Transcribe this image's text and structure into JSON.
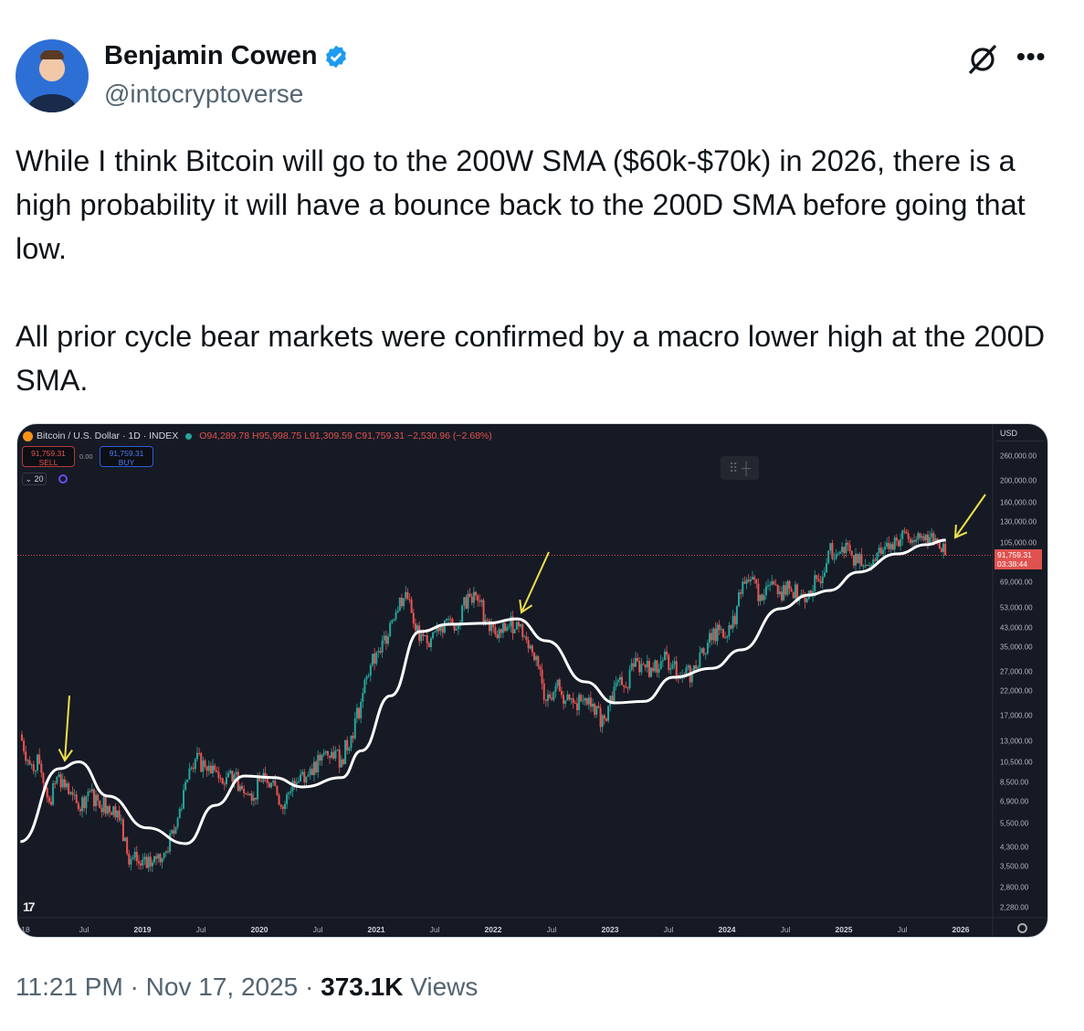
{
  "author": {
    "name": "Benjamin Cowen",
    "handle": "@intocryptoverse",
    "verified": true,
    "badge_color": "#1d9bf0"
  },
  "icons": {
    "grok": "grok-icon",
    "more": "more-options-icon",
    "verified": "verified-badge-icon"
  },
  "more_label": "•••",
  "tweet_text": "While I think Bitcoin will go to the 200W SMA ($60k-$70k) in 2026, there is a high probability it will have a bounce back to the 200D SMA before going that low.\n\nAll prior cycle bear markets were confirmed by a macro lower high at the 200D SMA.",
  "chart": {
    "symbol": "Bitcoin / U.S. Dollar · 1D · INDEX",
    "open": "O94,289.78",
    "high": "H95,998.75",
    "low": "L91,309.59",
    "close": "C91,759.31",
    "change": "−2,530.96 (−2.68%)",
    "sell_price": "91,759.31",
    "sell_label": "SELL",
    "spread": "0.00",
    "buy_price": "91,759.31",
    "buy_label": "BUY",
    "volume_toggle": "20",
    "currency": "USD",
    "last_price": "91,759.31",
    "countdown": "03:38:44",
    "logo": "TV",
    "colors": {
      "background": "#161a25",
      "up": "#26a69a",
      "down": "#ef5350",
      "sma": "#ffffff",
      "arrows": "#f0e04a",
      "last_price": "#e0524f"
    }
  },
  "chart_data": {
    "type": "line",
    "scale": "log",
    "ylabel": "USD",
    "y_ticks": [
      "260,000.00",
      "200,000.00",
      "160,000.00",
      "130,000.00",
      "105,000.00",
      "69,000.00",
      "53,000.00",
      "43,000.00",
      "35,000.00",
      "27,000.00",
      "22,000.00",
      "17,000.00",
      "13,000.00",
      "10,500.00",
      "8,500.00",
      "6,900.00",
      "5,500.00",
      "4,300.00",
      "3,500.00",
      "2,800.00",
      "2,280.00"
    ],
    "x_ticks": [
      "18",
      "Jul",
      "2019",
      "Jul",
      "2020",
      "Jul",
      "2021",
      "Jul",
      "2022",
      "Jul",
      "2023",
      "Jul",
      "2024",
      "Jul",
      "2025",
      "Jul",
      "2026"
    ],
    "series": [
      {
        "kind": "candles",
        "values": [
          [
            "2017-12",
            14000
          ],
          [
            "2018-01",
            10200
          ],
          [
            "2018-02",
            10300
          ],
          [
            "2018-03",
            6900
          ],
          [
            "2018-04",
            9200
          ],
          [
            "2018-05",
            7500
          ],
          [
            "2018-06",
            6400
          ],
          [
            "2018-07",
            7700
          ],
          [
            "2018-08",
            7000
          ],
          [
            "2018-09",
            6600
          ],
          [
            "2018-10",
            6300
          ],
          [
            "2018-11",
            4000
          ],
          [
            "2018-12",
            3700
          ],
          [
            "2019-01",
            3450
          ],
          [
            "2019-02",
            3800
          ],
          [
            "2019-03",
            4100
          ],
          [
            "2019-04",
            5300
          ],
          [
            "2019-05",
            8500
          ],
          [
            "2019-06",
            10800
          ],
          [
            "2019-07",
            10000
          ],
          [
            "2019-08",
            9600
          ],
          [
            "2019-09",
            8300
          ],
          [
            "2019-10",
            9200
          ],
          [
            "2019-11",
            7550
          ],
          [
            "2019-12",
            7200
          ],
          [
            "2020-01",
            9350
          ],
          [
            "2020-02",
            8600
          ],
          [
            "2020-03",
            6400
          ],
          [
            "2020-04",
            8600
          ],
          [
            "2020-05",
            9450
          ],
          [
            "2020-06",
            9140
          ],
          [
            "2020-07",
            11300
          ],
          [
            "2020-08",
            11650
          ],
          [
            "2020-09",
            10780
          ],
          [
            "2020-10",
            13800
          ],
          [
            "2020-11",
            19700
          ],
          [
            "2020-12",
            29000
          ],
          [
            "2021-01",
            33100
          ],
          [
            "2021-02",
            45200
          ],
          [
            "2021-03",
            58800
          ],
          [
            "2021-04",
            57700
          ],
          [
            "2021-05",
            37300
          ],
          [
            "2021-06",
            35000
          ],
          [
            "2021-07",
            41500
          ],
          [
            "2021-08",
            47100
          ],
          [
            "2021-09",
            43800
          ],
          [
            "2021-10",
            61300
          ],
          [
            "2021-11",
            57000
          ],
          [
            "2021-12",
            46300
          ],
          [
            "2022-01",
            38500
          ],
          [
            "2022-02",
            43200
          ],
          [
            "2022-03",
            45500
          ],
          [
            "2022-04",
            37700
          ],
          [
            "2022-05",
            31800
          ],
          [
            "2022-06",
            19900
          ],
          [
            "2022-07",
            23300
          ],
          [
            "2022-08",
            20000
          ],
          [
            "2022-09",
            19400
          ],
          [
            "2022-10",
            20500
          ],
          [
            "2022-11",
            17200
          ],
          [
            "2022-12",
            16500
          ],
          [
            "2023-01",
            23100
          ],
          [
            "2023-02",
            23100
          ],
          [
            "2023-03",
            28500
          ],
          [
            "2023-04",
            29200
          ],
          [
            "2023-05",
            27200
          ],
          [
            "2023-06",
            30500
          ],
          [
            "2023-07",
            29200
          ],
          [
            "2023-08",
            26000
          ],
          [
            "2023-09",
            27000
          ],
          [
            "2023-10",
            34600
          ],
          [
            "2023-11",
            37700
          ],
          [
            "2023-12",
            42300
          ],
          [
            "2024-01",
            42600
          ],
          [
            "2024-02",
            61200
          ],
          [
            "2024-03",
            71300
          ],
          [
            "2024-04",
            60700
          ],
          [
            "2024-05",
            67500
          ],
          [
            "2024-06",
            62700
          ],
          [
            "2024-07",
            64600
          ],
          [
            "2024-08",
            59000
          ],
          [
            "2024-09",
            63300
          ],
          [
            "2024-10",
            70200
          ],
          [
            "2024-11",
            96400
          ],
          [
            "2024-12",
            93400
          ],
          [
            "2025-01",
            102400
          ],
          [
            "2025-02",
            84400
          ],
          [
            "2025-03",
            82500
          ],
          [
            "2025-04",
            94200
          ],
          [
            "2025-05",
            104600
          ],
          [
            "2025-06",
            107100
          ],
          [
            "2025-07",
            115700
          ],
          [
            "2025-08",
            108200
          ],
          [
            "2025-09",
            114000
          ],
          [
            "2025-10",
            109500
          ],
          [
            "2025-11",
            91759
          ]
        ]
      },
      {
        "kind": "sma",
        "values": [
          [
            "2017-12",
            4540
          ],
          [
            "2018-04",
            9770
          ],
          [
            "2018-06",
            10500
          ],
          [
            "2018-09",
            7330
          ],
          [
            "2019-01",
            5250
          ],
          [
            "2019-05",
            4450
          ],
          [
            "2019-08",
            6650
          ],
          [
            "2019-11",
            9050
          ],
          [
            "2020-02",
            8900
          ],
          [
            "2020-05",
            8070
          ],
          [
            "2020-09",
            8900
          ],
          [
            "2020-11",
            11800
          ],
          [
            "2021-02",
            21000
          ],
          [
            "2021-05",
            41200
          ],
          [
            "2021-08",
            44500
          ],
          [
            "2021-12",
            45000
          ],
          [
            "2022-03",
            47100
          ],
          [
            "2022-06",
            37400
          ],
          [
            "2022-10",
            24300
          ],
          [
            "2023-01",
            19500
          ],
          [
            "2023-04",
            19800
          ],
          [
            "2023-07",
            25500
          ],
          [
            "2023-11",
            28000
          ],
          [
            "2024-02",
            34000
          ],
          [
            "2024-06",
            52400
          ],
          [
            "2024-09",
            60500
          ],
          [
            "2024-11",
            63400
          ],
          [
            "2025-02",
            76900
          ],
          [
            "2025-06",
            93100
          ],
          [
            "2025-09",
            102600
          ],
          [
            "2025-11",
            107700
          ]
        ]
      }
    ],
    "annotations": [
      "arrow",
      "arrow",
      "arrow"
    ]
  },
  "footer": {
    "time": "11:21 PM",
    "sep": " · ",
    "date": "Nov 17, 2025",
    "views": "373.1K",
    "views_label": " Views"
  }
}
